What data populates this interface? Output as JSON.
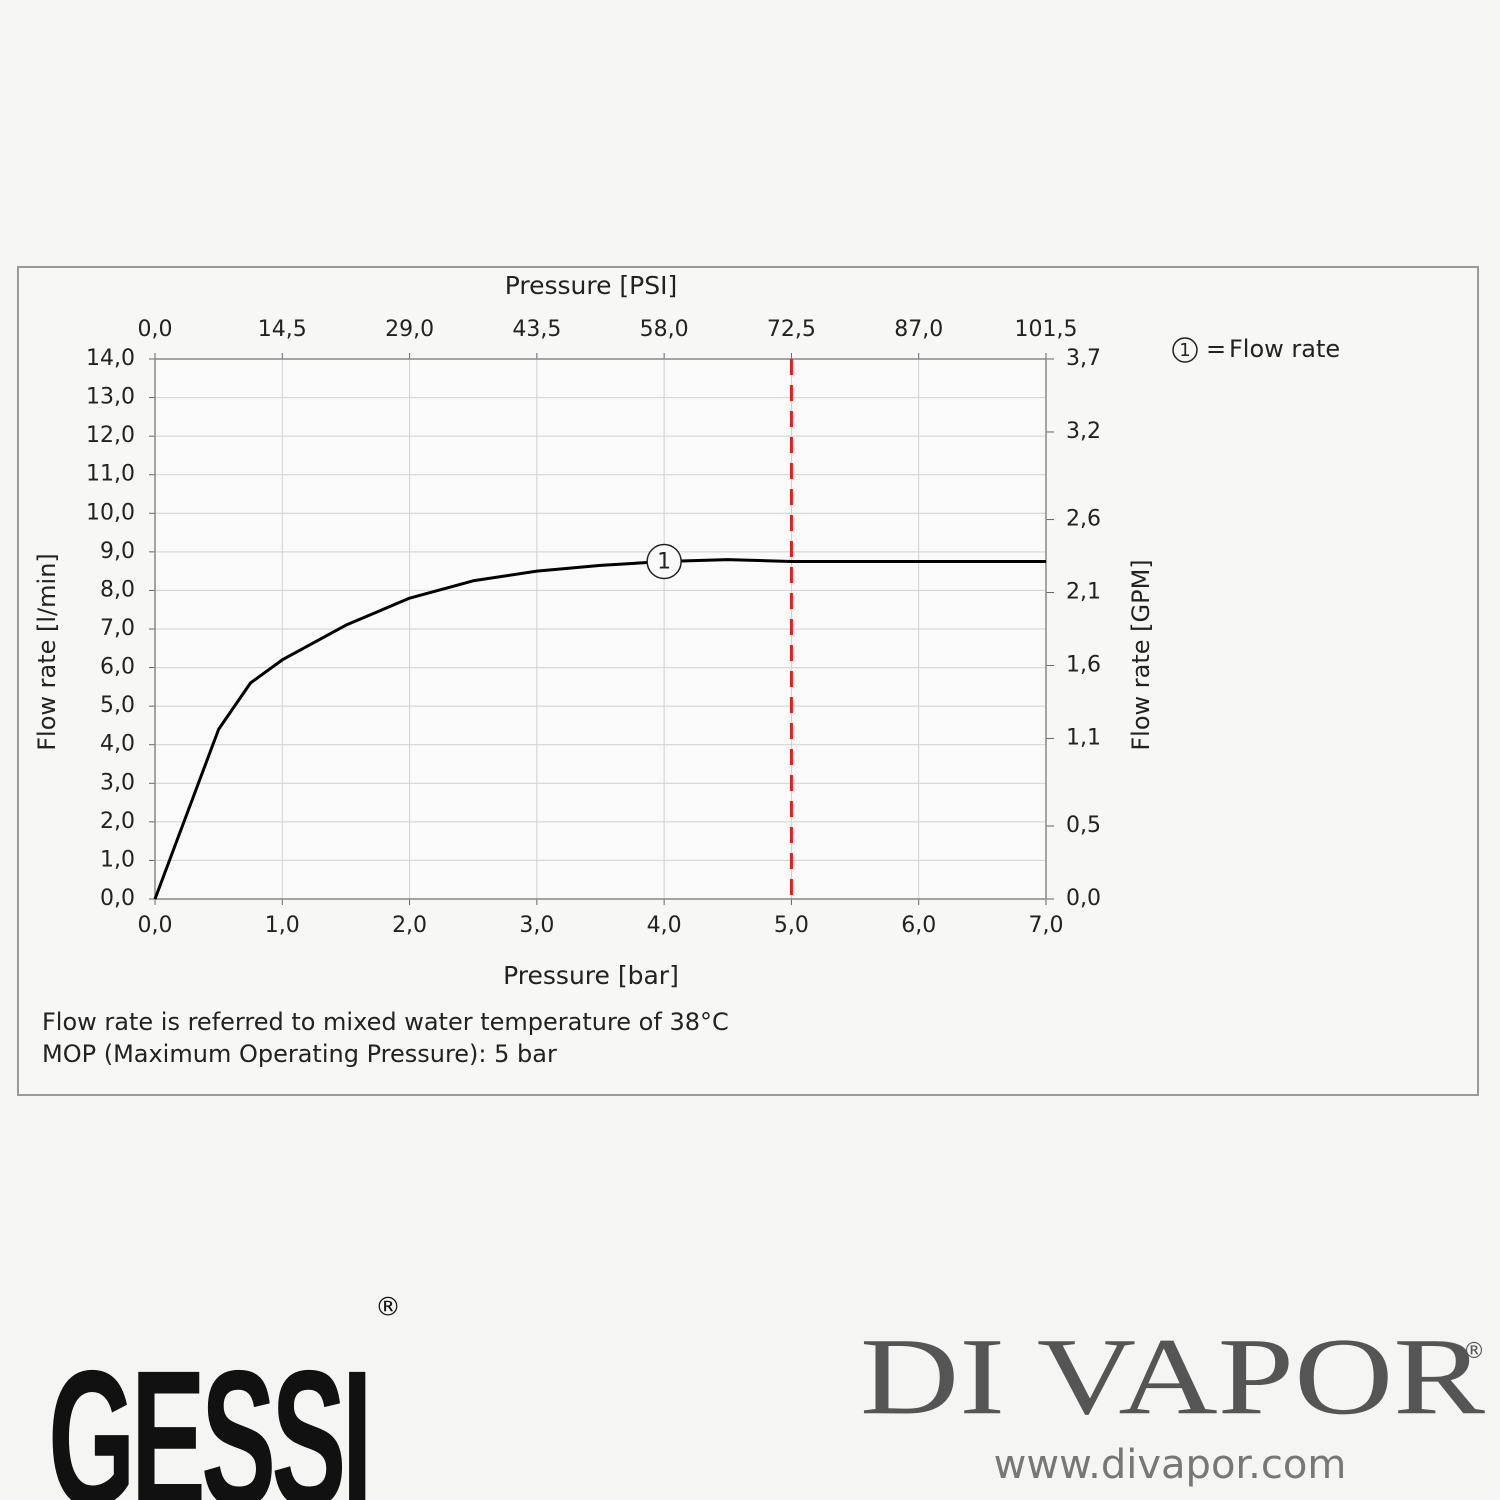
{
  "chart_data": {
    "type": "line",
    "title": "Pressure [PSI]",
    "x_label": "Pressure [bar]",
    "y_label": "Flow rate [l/min]",
    "y2_label": "Flow rate [GPM]",
    "x": [
      0,
      0.25,
      0.5,
      0.75,
      1,
      1.5,
      2,
      2.5,
      3,
      3.5,
      4,
      4.5,
      5,
      5.5,
      6,
      7
    ],
    "series": [
      {
        "name": "Flow rate",
        "color": "#000000",
        "values": [
          0,
          2.2,
          4.4,
          5.6,
          6.2,
          7.1,
          7.8,
          8.25,
          8.5,
          8.65,
          8.75,
          8.8,
          8.75,
          8.75,
          8.75,
          8.75
        ]
      }
    ],
    "curve_marker": {
      "label": "1",
      "x": 4,
      "y": 8.75
    },
    "legend": {
      "symbol": "1",
      "separator": "="
    },
    "reference_line": {
      "x": 5,
      "color": "#e02020"
    },
    "xlim": [
      0,
      7
    ],
    "xticks": [
      {
        "value": 0,
        "label": "0,0"
      },
      {
        "value": 1,
        "label": "1,0"
      },
      {
        "value": 2,
        "label": "2,0"
      },
      {
        "value": 3,
        "label": "3,0"
      },
      {
        "value": 4,
        "label": "4,0"
      },
      {
        "value": 5,
        "label": "5,0"
      },
      {
        "value": 6,
        "label": "6,0"
      },
      {
        "value": 7,
        "label": "7,0"
      }
    ],
    "x2lim": [
      0,
      101.5
    ],
    "x2ticks": [
      {
        "value": 0,
        "label": "0,0"
      },
      {
        "value": 14.5,
        "label": "14,5"
      },
      {
        "value": 29,
        "label": "29,0"
      },
      {
        "value": 43.5,
        "label": "43,5"
      },
      {
        "value": 58,
        "label": "58,0"
      },
      {
        "value": 72.5,
        "label": "72,5"
      },
      {
        "value": 87,
        "label": "87,0"
      },
      {
        "value": 101.5,
        "label": "101,5"
      }
    ],
    "ylim": [
      0,
      14
    ],
    "yticks": [
      {
        "value": 0,
        "label": "0,0"
      },
      {
        "value": 1,
        "label": "1,0"
      },
      {
        "value": 2,
        "label": "2,0"
      },
      {
        "value": 3,
        "label": "3,0"
      },
      {
        "value": 4,
        "label": "4,0"
      },
      {
        "value": 5,
        "label": "5,0"
      },
      {
        "value": 6,
        "label": "6,0"
      },
      {
        "value": 7,
        "label": "7,0"
      },
      {
        "value": 8,
        "label": "8,0"
      },
      {
        "value": 9,
        "label": "9,0"
      },
      {
        "value": 10,
        "label": "10,0"
      },
      {
        "value": 11,
        "label": "11,0"
      },
      {
        "value": 12,
        "label": "12,0"
      },
      {
        "value": 13,
        "label": "13,0"
      },
      {
        "value": 14,
        "label": "14,0"
      }
    ],
    "y2lim": [
      0,
      3.7
    ],
    "y2ticks": [
      {
        "value": 0,
        "label": "0,0"
      },
      {
        "value": 0.5,
        "label": "0,5"
      },
      {
        "value": 1.1,
        "label": "1,1"
      },
      {
        "value": 1.6,
        "label": "1,6"
      },
      {
        "value": 2.1,
        "label": "2,1"
      },
      {
        "value": 2.6,
        "label": "2,6"
      },
      {
        "value": 3.2,
        "label": "3,2"
      },
      {
        "value": 3.7,
        "label": "3,7"
      }
    ],
    "grid": true,
    "notes": [
      "Flow rate is referred to mixed water temperature of 38°C",
      "MOP (Maximum Operating Pressure): 5 bar"
    ]
  },
  "branding": {
    "left_logo": "GESSI",
    "left_mark": "®",
    "right_logo": "DI VAPOR",
    "right_mark": "®",
    "url": "www.divapor.com"
  }
}
